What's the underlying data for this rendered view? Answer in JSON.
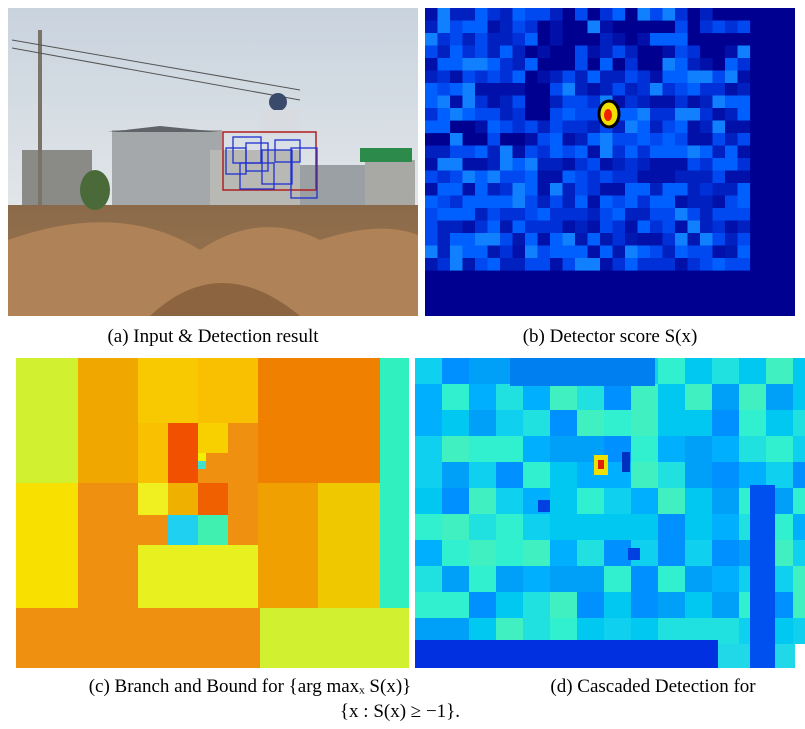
{
  "captions": {
    "a": "(a) Input & Detection result",
    "b": "(b) Detector score S(x)",
    "c": "(c) Branch and Bound for {arg maxₓ S(x)}",
    "d": "(d) Cascaded Detection for",
    "shared_line": "{x : S(x) ≥ −1}."
  }
}
